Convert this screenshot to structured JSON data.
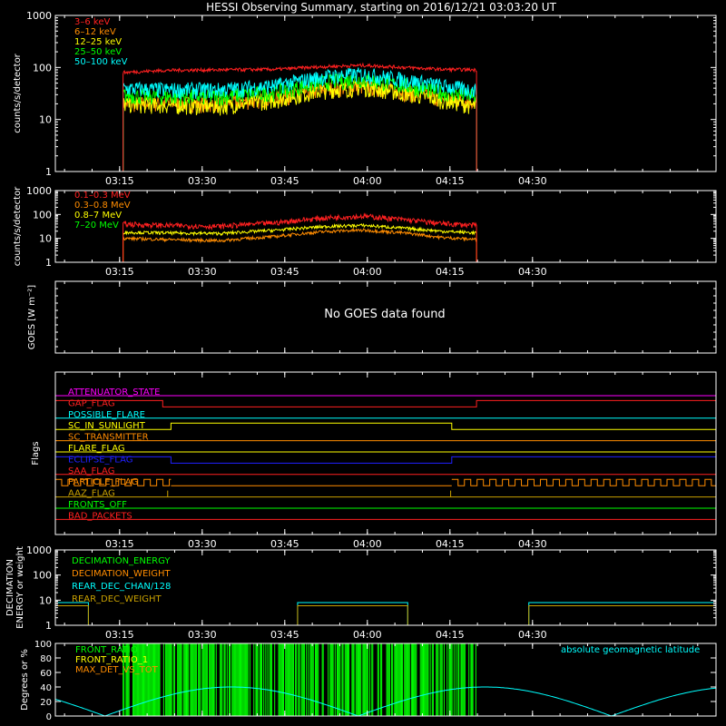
{
  "title": "HESSI Observing Summary, starting on 2016/12/21 03:03:20 UT",
  "time_axis": {
    "unit": "minutes after 03:03:20 UT",
    "range_min": [
      0,
      120
    ],
    "ticks": [
      {
        "label": "03:15",
        "t": 11.67
      },
      {
        "label": "03:30",
        "t": 26.67
      },
      {
        "label": "03:45",
        "t": 41.67
      },
      {
        "label": "04:00",
        "t": 56.67
      },
      {
        "label": "04:15",
        "t": 71.67
      },
      {
        "label": "04:30",
        "t": 86.67
      }
    ]
  },
  "colors": {
    "red": "#ff2020",
    "orange": "#ff8c00",
    "yellow": "#ffff00",
    "green": "#00ff00",
    "cyan": "#00ffff",
    "magenta": "#ff00ff",
    "blue": "#2020ff",
    "olive": "#c8a000"
  },
  "chart_data": [
    {
      "type": "line",
      "name_key": "hxr",
      "ylabel": "counts/s/detector",
      "yscale": "log",
      "ylim": [
        1,
        1000
      ],
      "yticks": [
        "1",
        "10",
        "100",
        "1000"
      ],
      "observing_window": [
        12.3,
        76.5
      ],
      "series": [
        {
          "name": "3–6 keV",
          "color": "#ff2020",
          "x": [
            12.3,
            20,
            30,
            40,
            50,
            56,
            62,
            70,
            76.5
          ],
          "y": [
            80,
            88,
            90,
            92,
            105,
            110,
            102,
            92,
            90
          ]
        },
        {
          "name": "6–12 keV",
          "color": "#ff8c00",
          "x": [
            12.3,
            20,
            30,
            40,
            50,
            56,
            62,
            70,
            76.5
          ],
          "y": [
            20,
            21,
            20,
            26,
            40,
            44,
            36,
            26,
            22
          ]
        },
        {
          "name": "12–25 keV",
          "color": "#ffff00",
          "x": [
            12.3,
            20,
            30,
            40,
            50,
            56,
            62,
            70,
            76.5
          ],
          "y": [
            20,
            19,
            18,
            24,
            38,
            42,
            34,
            24,
            18
          ]
        },
        {
          "name": "25–50 keV",
          "color": "#00ff00",
          "x": [
            12.3,
            20,
            30,
            40,
            50,
            56,
            62,
            70,
            76.5
          ],
          "y": [
            30,
            28,
            28,
            34,
            55,
            60,
            48,
            34,
            28
          ]
        },
        {
          "name": "50–100 keV",
          "color": "#00ffff",
          "x": [
            12.3,
            20,
            30,
            40,
            50,
            56,
            62,
            70,
            76.5
          ],
          "y": [
            40,
            38,
            38,
            45,
            70,
            75,
            62,
            45,
            36
          ]
        }
      ]
    },
    {
      "type": "line",
      "name_key": "gamma",
      "ylabel": "counts/s/detector",
      "yscale": "log",
      "ylim": [
        1,
        1000
      ],
      "yticks": [
        "1",
        "10",
        "100",
        "1000"
      ],
      "observing_window": [
        12.3,
        76.5
      ],
      "series": [
        {
          "name": "0.1–0.3 MeV",
          "color": "#ff2020",
          "x": [
            12.3,
            20,
            30,
            40,
            50,
            56,
            62,
            70,
            76.5
          ],
          "y": [
            40,
            35,
            32,
            45,
            75,
            85,
            65,
            42,
            35
          ]
        },
        {
          "name": "0.3–0.8 MeV",
          "color": "#ff8c00",
          "x": [
            12.3,
            20,
            30,
            40,
            50,
            56,
            62,
            70,
            76.5
          ],
          "y": [
            10,
            9,
            8,
            12,
            20,
            22,
            18,
            11,
            9
          ]
        },
        {
          "name": "0.8–7 MeV",
          "color": "#ffff00",
          "x": [
            12.3,
            20,
            30,
            40,
            50,
            56,
            62,
            70,
            76.5
          ],
          "y": [
            18,
            17,
            16,
            22,
            32,
            35,
            28,
            20,
            17
          ]
        },
        {
          "name": "7–20 MeV",
          "color": "#00ff00",
          "x": [
            0,
            120
          ],
          "y": [
            1,
            1
          ]
        }
      ]
    },
    {
      "type": "line",
      "name_key": "goes",
      "ylabel": "GOES [W m⁻²]",
      "message": "No GOES data found"
    },
    {
      "type": "step",
      "name_key": "flags",
      "ylabel": "Flags",
      "flags": [
        {
          "name": "ATTENUATOR_STATE",
          "color": "#ff00ff",
          "segments": [
            [
              0,
              120,
              0
            ]
          ]
        },
        {
          "name": "GAP_FLAG",
          "color": "#ff2020",
          "segments": [
            [
              0,
              19.5,
              1
            ],
            [
              19.5,
              76.5,
              0
            ],
            [
              76.5,
              120,
              1
            ]
          ]
        },
        {
          "name": "POSSIBLE_FLARE",
          "color": "#00ffff",
          "segments": [
            [
              0,
              120,
              0
            ]
          ]
        },
        {
          "name": "SC_IN_SUNLIGHT",
          "color": "#ffff00",
          "segments": [
            [
              0,
              21,
              0
            ],
            [
              21,
              72,
              1
            ],
            [
              72,
              120,
              0
            ]
          ]
        },
        {
          "name": "SC_TRANSMITTER",
          "color": "#ff8c00",
          "segments": [
            [
              0,
              120,
              0
            ]
          ]
        },
        {
          "name": "FLARE_FLAG",
          "color": "#ffff00",
          "segments": [
            [
              0,
              120,
              0
            ]
          ]
        },
        {
          "name": "ECLIPSE_FLAG",
          "color": "#2020ff",
          "segments": [
            [
              0,
              21,
              1
            ],
            [
              21,
              72,
              0
            ],
            [
              72,
              120,
              1
            ]
          ]
        },
        {
          "name": "SAA_FLAG",
          "color": "#ff2020",
          "segments": [
            [
              0,
              120,
              0
            ]
          ]
        },
        {
          "name": "PARTICLE_FLAG",
          "color": "#ff8c00",
          "pulsed": [
            [
              0,
              21
            ],
            [
              72,
              120
            ]
          ],
          "segments": [
            [
              21,
              72,
              0
            ]
          ]
        },
        {
          "name": "AAZ_FLAG",
          "color": "#c8a000",
          "spikes": [
            20.4,
            71.8
          ],
          "segments": [
            [
              0,
              120,
              0
            ]
          ]
        },
        {
          "name": "FRONTS_OFF",
          "color": "#00ff00",
          "segments": [
            [
              0,
              120,
              0
            ]
          ]
        },
        {
          "name": "BAD_PACKETS",
          "color": "#ff2020",
          "segments": [
            [
              0,
              120,
              0
            ]
          ]
        }
      ]
    },
    {
      "type": "line",
      "name_key": "decim",
      "ylabel_lines": [
        "DECIMATION",
        "ENERGY or weight"
      ],
      "yscale": "log",
      "ylim": [
        1,
        1000
      ],
      "yticks": [
        "1",
        "10",
        "100",
        "1000"
      ],
      "series": [
        {
          "name": "DECIMATION_ENERGY",
          "color": "#00ff00",
          "segments": [
            [
              0,
              120,
              1
            ]
          ]
        },
        {
          "name": "DECIMATION_WEIGHT",
          "color": "#ff8c00",
          "segments": [
            [
              0,
              120,
              1
            ]
          ]
        },
        {
          "name": "REAR_DEC_CHAN/128",
          "color": "#00ffff",
          "segments": [
            [
              0,
              6,
              8
            ],
            [
              6,
              44,
              1
            ],
            [
              44,
              64,
              8
            ],
            [
              64,
              86,
              1
            ],
            [
              86,
              120,
              8
            ]
          ]
        },
        {
          "name": "REAR_DEC_WEIGHT",
          "color": "#c8a000",
          "segments": [
            [
              0,
              6,
              6
            ],
            [
              6,
              44,
              1
            ],
            [
              44,
              64,
              6
            ],
            [
              64,
              86,
              1
            ],
            [
              86,
              120,
              6
            ]
          ]
        }
      ]
    },
    {
      "type": "line",
      "name_key": "ratio",
      "ylabel": "Degrees or %",
      "ylim": [
        0,
        100
      ],
      "yticks": [
        "0",
        "20",
        "40",
        "60",
        "80",
        "100"
      ],
      "series": [
        {
          "name": "FRONT_RATIO",
          "color": "#00ff00",
          "burst": [
            12.3,
            76.5
          ]
        },
        {
          "name": "FRONT_RATIO_1",
          "color": "#ffff00"
        },
        {
          "name": "MAX_DET_VS_TOT",
          "color": "#ff8c00"
        }
      ],
      "latitude_label": "absolute geomagnetic latitude",
      "latitude_color": "#00ffff",
      "latitude_period_min": 46,
      "latitude_peak_deg": 40,
      "latitude_phase_min": 9
    }
  ]
}
